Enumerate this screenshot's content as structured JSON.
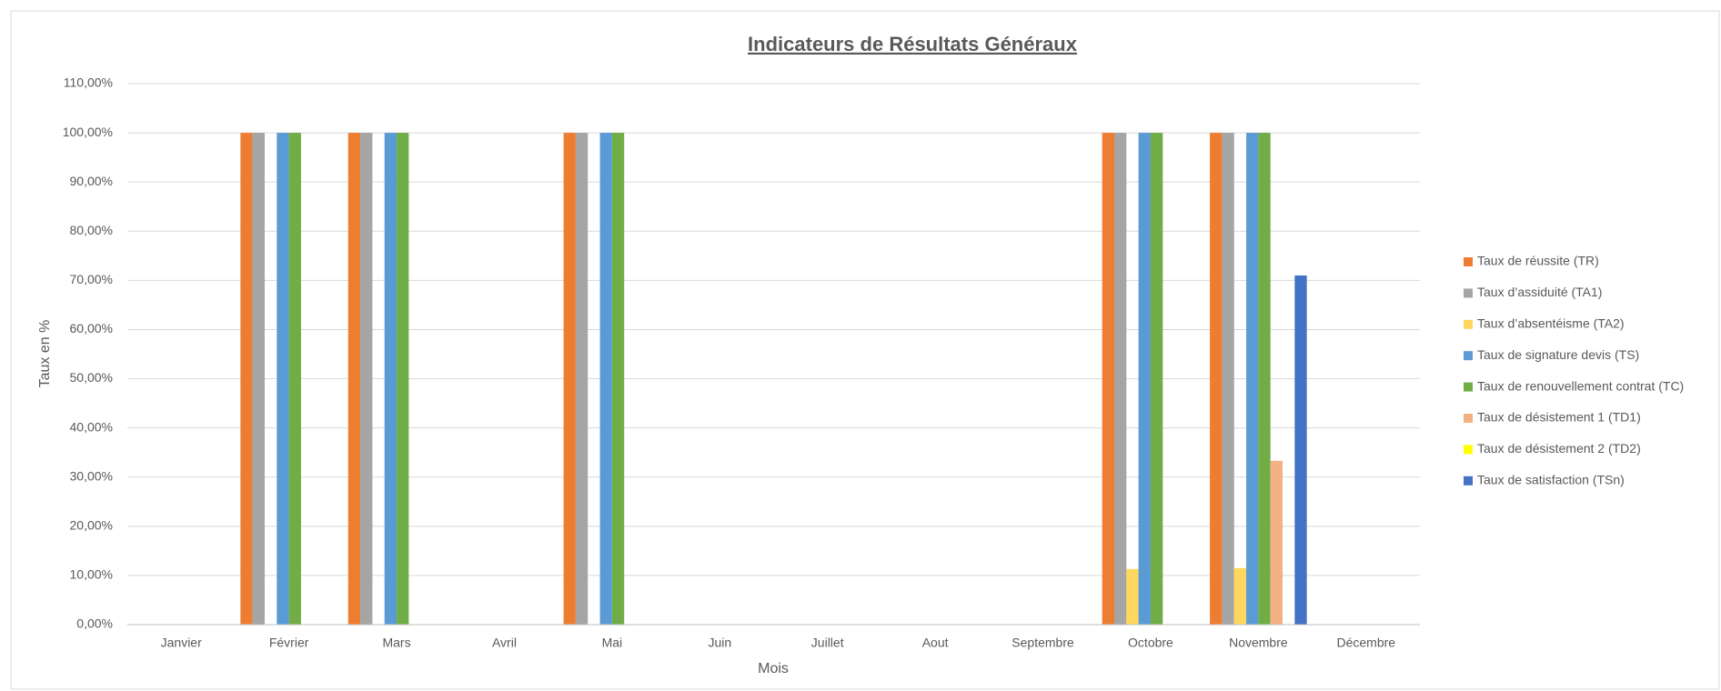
{
  "chart_data": {
    "type": "bar",
    "title": "Indicateurs de Résultats Généraux",
    "x_label": "Mois",
    "y_label": "Taux en %",
    "categories": [
      "Janvier",
      "Février",
      "Mars",
      "Avril",
      "Mai",
      "Juin",
      "Juillet",
      "Aout",
      "Septembre",
      "Octobre",
      "Novembre",
      "Décembre"
    ],
    "series": [
      {
        "name": "Taux de réussite (TR)",
        "color": "#ed7d31",
        "values": [
          null,
          100,
          100,
          null,
          100,
          null,
          null,
          null,
          null,
          100,
          100,
          null
        ]
      },
      {
        "name": "Taux d’assiduité (TA1)",
        "color": "#a5a5a5",
        "values": [
          null,
          100,
          100,
          null,
          100,
          null,
          null,
          null,
          null,
          100,
          100,
          null
        ]
      },
      {
        "name": "Taux d’absentéisme (TA2)",
        "color": "#ffd75e",
        "values": [
          null,
          0,
          0,
          null,
          0,
          null,
          null,
          null,
          null,
          11.3,
          11.5,
          null
        ]
      },
      {
        "name": "Taux de signature devis (TS)",
        "color": "#5b9bd5",
        "values": [
          null,
          100,
          100,
          null,
          100,
          null,
          null,
          null,
          null,
          100,
          100,
          null
        ]
      },
      {
        "name": "Taux de renouvellement contrat (TC)",
        "color": "#70ad47",
        "values": [
          null,
          100,
          100,
          null,
          100,
          null,
          null,
          null,
          null,
          100,
          100,
          null
        ]
      },
      {
        "name": "Taux de désistement 1 (TD1)",
        "color": "#f4b183",
        "values": [
          null,
          0,
          0,
          null,
          0,
          null,
          null,
          null,
          null,
          0,
          33.3,
          null
        ]
      },
      {
        "name": "Taux de désistement 2 (TD2)",
        "color": "#ffff00",
        "values": [
          null,
          0,
          0,
          null,
          0,
          null,
          null,
          null,
          null,
          0,
          0,
          null
        ]
      },
      {
        "name": "Taux de satisfaction (TSn)",
        "color": "#4472c4",
        "values": [
          null,
          0,
          0,
          null,
          0,
          null,
          null,
          null,
          null,
          0,
          71,
          null
        ]
      }
    ],
    "ylim": [
      0,
      110
    ],
    "yticks": [
      {
        "value": 0,
        "label": "0,00%"
      },
      {
        "value": 10,
        "label": "10,00%"
      },
      {
        "value": 20,
        "label": "20,00%"
      },
      {
        "value": 30,
        "label": "30,00%"
      },
      {
        "value": 40,
        "label": "40,00%"
      },
      {
        "value": 50,
        "label": "50,00%"
      },
      {
        "value": 60,
        "label": "60,00%"
      },
      {
        "value": 70,
        "label": "70,00%"
      },
      {
        "value": 80,
        "label": "80,00%"
      },
      {
        "value": 90,
        "label": "90,00%"
      },
      {
        "value": 100,
        "label": "100,00%"
      },
      {
        "value": 110,
        "label": "110,00%"
      }
    ],
    "grid": true,
    "legend": "right"
  }
}
